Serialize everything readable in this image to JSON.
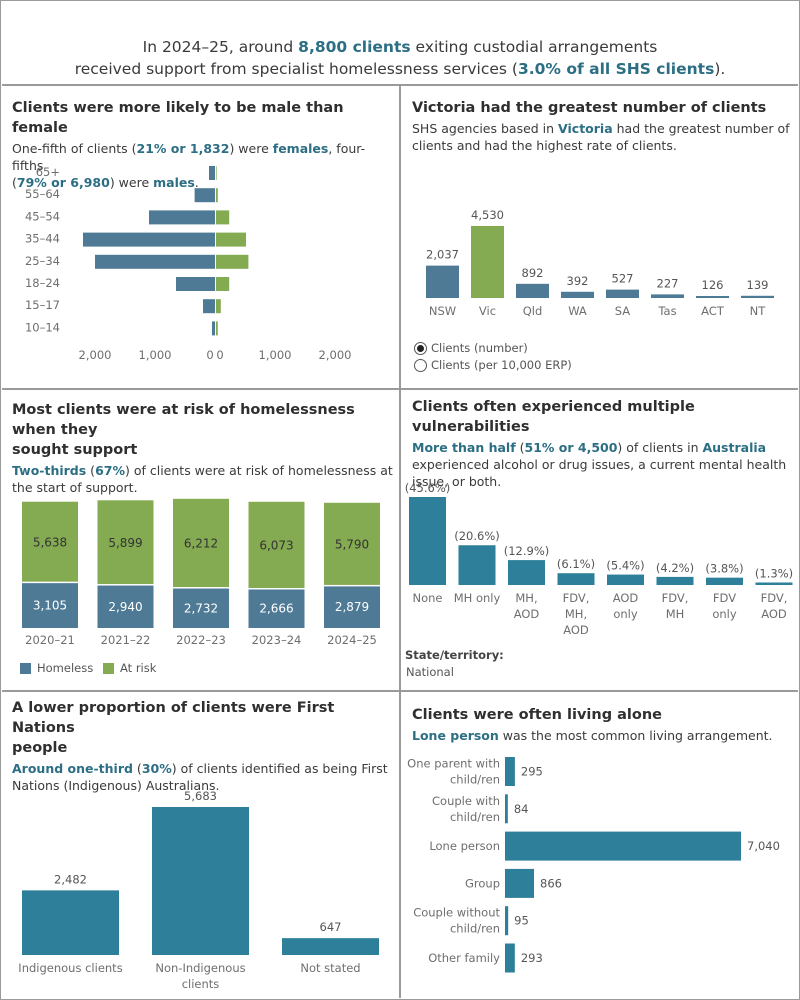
{
  "banner": {
    "line1_pre": "In 2024–25, around ",
    "line1_hl": "8,800 clients",
    "line1_post": " exiting custodial arrangements",
    "line2_pre": "received support from specialist homelessness services (",
    "line2_hl": "3.0% of all SHS clients",
    "line2_post": ")."
  },
  "sex": {
    "title": "Clients were more likely to be male than female",
    "sub_1": "One-fifth of clients (",
    "sub_hl1": "21% or 1,832",
    "sub_2": ") were ",
    "sub_hl2": "females",
    "sub_3": ", four-fifths",
    "sub_4": "(",
    "sub_hl3": "79% or 6,980",
    "sub_5": ") were ",
    "sub_hl4": "males",
    "sub_6": ".",
    "axis_ticks": [
      "2,000",
      "1,000",
      "0",
      "0",
      "1,000",
      "2,000"
    ]
  },
  "state": {
    "title": "Victoria had the greatest number of clients",
    "sub_1": "SHS agencies based in ",
    "sub_hl": "Victoria",
    "sub_2": " had the greatest number of",
    "sub_3": "clients and had the highest rate of clients.",
    "radio_1": "Clients (number)",
    "radio_2": "Clients (per 10,000 ERP)"
  },
  "tenure": {
    "title_1": "Most clients were at risk of homelessness when they",
    "title_2": "sought support",
    "sub_hl": "Two-thirds",
    "sub_1": " (",
    "sub_hl2": "67%",
    "sub_2": ") of clients were at risk of homelessness at",
    "sub_3": "the start of support.",
    "legend_homeless": "Homeless",
    "legend_atrisk": "At risk"
  },
  "vuln": {
    "title": "Clients often experienced multiple vulnerabilities",
    "sub_hl1": "More than half",
    "sub_1": " (",
    "sub_hl2": "51% or 4,500",
    "sub_2": ") of clients in ",
    "sub_hl3": "Australia",
    "sub_3": "experienced alcohol or drug issues, a current mental health",
    "sub_4": "issue, or both.",
    "filter_label": "State/territory:",
    "filter_value": "National"
  },
  "indig": {
    "title_1": "A lower proportion of clients were First Nations",
    "title_2": "people",
    "sub_hl1": "Around one-third",
    "sub_1": " (",
    "sub_hl2": "30%",
    "sub_2": ") of clients identified as being First",
    "sub_3": "Nations (Indigenous) Australians."
  },
  "living": {
    "title": "Clients were often living alone",
    "sub_hl": "Lone person",
    "sub_1": " was the most common living arrangement."
  },
  "colors": {
    "blue": "#4e7a96",
    "green": "#84ab52",
    "teal": "#2d7f9a",
    "textblue": "#2c6e84"
  },
  "chart_data": [
    {
      "id": "sex",
      "type": "bar",
      "orientation": "horizontal",
      "categories": [
        "65+",
        "55–64",
        "45–54",
        "35–44",
        "25–34",
        "18–24",
        "15–17",
        "10–14"
      ],
      "series": [
        {
          "values": [
            100,
            340,
            1100,
            2200,
            2000,
            650,
            200,
            50
          ]
        },
        {
          "values": [
            10,
            30,
            220,
            500,
            540,
            220,
            80,
            30
          ]
        }
      ],
      "xlim": [
        0,
        2500
      ]
    },
    {
      "id": "state",
      "type": "bar",
      "categories": [
        "NSW",
        "Vic",
        "Qld",
        "WA",
        "SA",
        "Tas",
        "ACT",
        "NT"
      ],
      "values": [
        2037,
        4530,
        892,
        392,
        527,
        227,
        126,
        139
      ],
      "labels": [
        "2,037",
        "4,530",
        "892",
        "392",
        "527",
        "227",
        "126",
        "139"
      ],
      "highlight": "Vic",
      "ylim": [
        0,
        4530
      ]
    },
    {
      "id": "tenure",
      "type": "bar",
      "stacked": true,
      "categories": [
        "2020–21",
        "2021–22",
        "2022–23",
        "2023–24",
        "2024–25"
      ],
      "series": [
        {
          "name": "Homeless",
          "values": [
            3105,
            2940,
            2732,
            2666,
            2879
          ],
          "labels": [
            "3,105",
            "2,940",
            "2,732",
            "2,666",
            "2,879"
          ]
        },
        {
          "name": "At risk",
          "values": [
            5638,
            5899,
            6212,
            6073,
            5790
          ],
          "labels": [
            "5,638",
            "5,899",
            "6,212",
            "6,073",
            "5,790"
          ]
        }
      ],
      "legend": "bottom-left"
    },
    {
      "id": "vuln",
      "type": "bar",
      "categories": [
        [
          "None"
        ],
        [
          "MH only"
        ],
        [
          "MH,",
          "AOD"
        ],
        [
          "FDV,",
          "MH,",
          "AOD"
        ],
        [
          "AOD",
          "only"
        ],
        [
          "FDV,",
          "MH"
        ],
        [
          "FDV",
          "only"
        ],
        [
          "FDV,",
          "AOD"
        ]
      ],
      "values": [
        45.6,
        20.6,
        12.9,
        6.1,
        5.4,
        4.2,
        3.8,
        1.3
      ],
      "labels": [
        "(45.6%)",
        "(20.6%)",
        "(12.9%)",
        "(6.1%)",
        "(5.4%)",
        "(4.2%)",
        "(3.8%)",
        "(1.3%)"
      ],
      "ylim": [
        0,
        45.6
      ]
    },
    {
      "id": "indig",
      "type": "bar",
      "categories": [
        [
          "Indigenous clients"
        ],
        [
          "Non-Indigenous",
          "clients"
        ],
        [
          "Not stated"
        ]
      ],
      "values": [
        2482,
        5683,
        647
      ],
      "labels": [
        "2,482",
        "5,683",
        "647"
      ],
      "ylim": [
        0,
        5683
      ]
    },
    {
      "id": "living",
      "type": "bar",
      "orientation": "horizontal",
      "categories": [
        [
          "One parent with",
          "child/ren"
        ],
        [
          "Couple with",
          "child/ren"
        ],
        [
          "Lone person"
        ],
        [
          "Group"
        ],
        [
          "Couple without",
          "child/ren"
        ],
        [
          "Other family"
        ]
      ],
      "values": [
        295,
        84,
        7040,
        866,
        95,
        293
      ],
      "labels": [
        "295",
        "84",
        "7,040",
        "866",
        "95",
        "293"
      ],
      "xlim": [
        0,
        7040
      ]
    }
  ]
}
